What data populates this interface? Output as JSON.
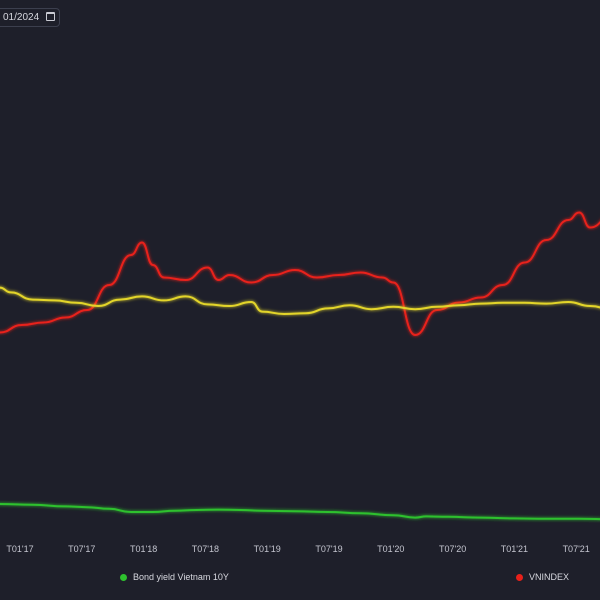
{
  "date_field": {
    "value": "01/2024",
    "icon": "calendar-icon"
  },
  "chart_data": {
    "type": "line",
    "x_ticks": [
      "T01'17",
      "T07'17",
      "T01'18",
      "T07'18",
      "T01'19",
      "T07'19",
      "T01'20",
      "T07'20",
      "T01'21",
      "T07'21"
    ],
    "x_range": [
      "2016-11",
      "2021-09"
    ],
    "grid": false,
    "legend_placement": "bottom",
    "series": [
      {
        "name": "Bond yield Vietnam 10Y",
        "color": "#2ec12e",
        "level": "low",
        "values": [
          [
            "2016-11",
            0.2
          ],
          [
            "2017-01",
            0.2
          ],
          [
            "2017-04",
            0.19
          ],
          [
            "2017-07",
            0.17
          ],
          [
            "2017-09",
            0.16
          ],
          [
            "2017-11",
            0.14
          ],
          [
            "2018-01",
            0.1
          ],
          [
            "2018-03",
            0.1
          ],
          [
            "2018-05",
            0.115
          ],
          [
            "2018-07",
            0.125
          ],
          [
            "2018-09",
            0.13
          ],
          [
            "2018-11",
            0.125
          ],
          [
            "2019-01",
            0.115
          ],
          [
            "2019-04",
            0.11
          ],
          [
            "2019-07",
            0.1
          ],
          [
            "2019-10",
            0.085
          ],
          [
            "2020-01",
            0.06
          ],
          [
            "2020-03",
            0.03
          ],
          [
            "2020-04",
            0.045
          ],
          [
            "2020-06",
            0.04
          ],
          [
            "2020-09",
            0.03
          ],
          [
            "2020-12",
            0.02
          ],
          [
            "2021-03",
            0.015
          ],
          [
            "2021-06",
            0.015
          ],
          [
            "2021-09",
            0.01
          ]
        ]
      },
      {
        "name": "VNINDEX",
        "color": "#e8201a",
        "level": "high",
        "values": [
          [
            "2016-11",
            0.33
          ],
          [
            "2017-01",
            0.35
          ],
          [
            "2017-03",
            0.38
          ],
          [
            "2017-05",
            0.39
          ],
          [
            "2017-07",
            0.41
          ],
          [
            "2017-09",
            0.44
          ],
          [
            "2017-11",
            0.54
          ],
          [
            "2018-01",
            0.66
          ],
          [
            "2018-02",
            0.71
          ],
          [
            "2018-03",
            0.62
          ],
          [
            "2018-04",
            0.57
          ],
          [
            "2018-06",
            0.56
          ],
          [
            "2018-08",
            0.61
          ],
          [
            "2018-09",
            0.56
          ],
          [
            "2018-10",
            0.58
          ],
          [
            "2018-12",
            0.55
          ],
          [
            "2019-02",
            0.58
          ],
          [
            "2019-04",
            0.6
          ],
          [
            "2019-06",
            0.57
          ],
          [
            "2019-08",
            0.58
          ],
          [
            "2019-10",
            0.59
          ],
          [
            "2019-12",
            0.57
          ],
          [
            "2020-01",
            0.55
          ],
          [
            "2020-03",
            0.34
          ],
          [
            "2020-05",
            0.44
          ],
          [
            "2020-07",
            0.47
          ],
          [
            "2020-09",
            0.49
          ],
          [
            "2020-11",
            0.54
          ],
          [
            "2021-01",
            0.63
          ],
          [
            "2021-03",
            0.72
          ],
          [
            "2021-05",
            0.8
          ],
          [
            "2021-06",
            0.83
          ],
          [
            "2021-07",
            0.77
          ],
          [
            "2021-09",
            0.82
          ]
        ]
      },
      {
        "name": "",
        "color": "#e3d52a",
        "level": "mid",
        "values": [
          [
            "2016-11",
            0.55
          ],
          [
            "2017-01",
            0.53
          ],
          [
            "2017-02",
            0.47
          ],
          [
            "2017-04",
            0.38
          ],
          [
            "2017-06",
            0.37
          ],
          [
            "2017-08",
            0.34
          ],
          [
            "2017-10",
            0.3
          ],
          [
            "2017-12",
            0.38
          ],
          [
            "2018-02",
            0.42
          ],
          [
            "2018-04",
            0.37
          ],
          [
            "2018-06",
            0.42
          ],
          [
            "2018-08",
            0.32
          ],
          [
            "2018-10",
            0.3
          ],
          [
            "2018-12",
            0.35
          ],
          [
            "2019-01",
            0.23
          ],
          [
            "2019-03",
            0.2
          ],
          [
            "2019-05",
            0.21
          ],
          [
            "2019-07",
            0.27
          ],
          [
            "2019-09",
            0.31
          ],
          [
            "2019-11",
            0.26
          ],
          [
            "2020-01",
            0.29
          ],
          [
            "2020-03",
            0.26
          ],
          [
            "2020-05",
            0.29
          ],
          [
            "2020-07",
            0.31
          ],
          [
            "2020-09",
            0.33
          ],
          [
            "2020-11",
            0.34
          ],
          [
            "2021-01",
            0.34
          ],
          [
            "2021-03",
            0.33
          ],
          [
            "2021-05",
            0.35
          ],
          [
            "2021-07",
            0.3
          ],
          [
            "2021-09",
            0.26
          ]
        ]
      }
    ]
  }
}
